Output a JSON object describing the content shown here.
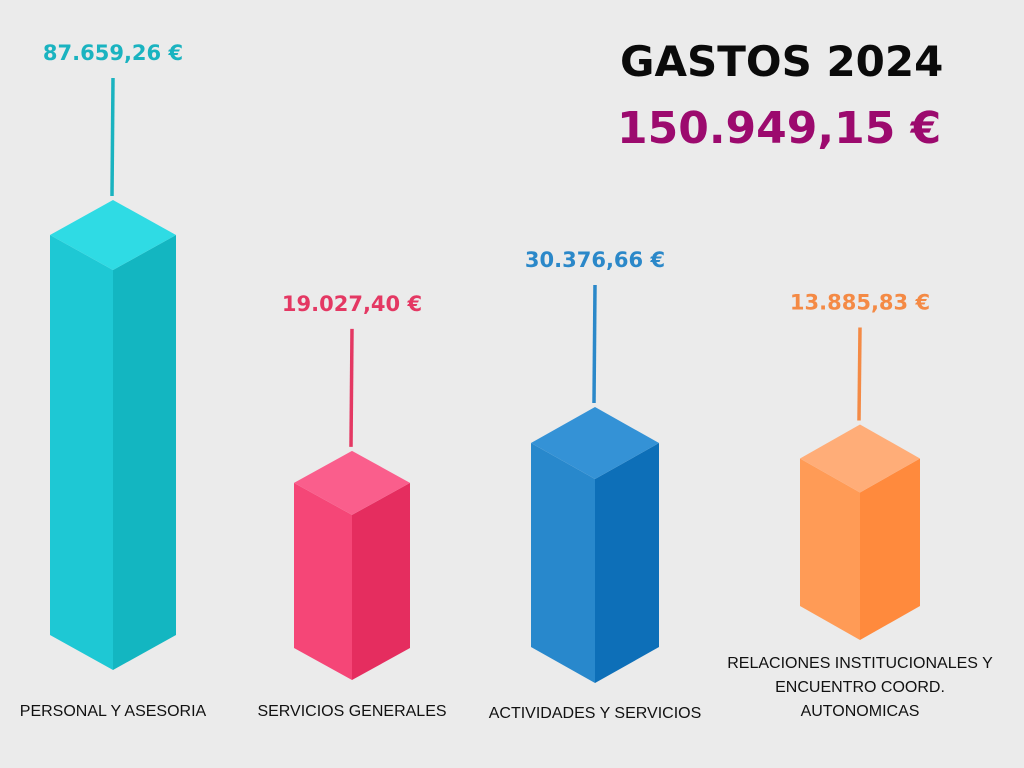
{
  "chart_data": {
    "type": "bar",
    "title": "GASTOS 2024",
    "total": "150.949,15 €",
    "total_color": "#9c0a6e",
    "categories": [
      [
        "PERSONAL Y ASESORIA"
      ],
      [
        "SERVICIOS GENERALES"
      ],
      [
        "ACTIVIDADES Y SERVICIOS"
      ],
      [
        "RELACIONES INSTITUCIONALES Y",
        "ENCUENTRO COORD.",
        "AUTONOMICAS"
      ]
    ],
    "values": [
      87659.26,
      19027.4,
      30376.66,
      13885.83
    ],
    "value_labels": [
      "87.659,26 €",
      "19.027,40 €",
      "30.376,66 €",
      "13.885,83 €"
    ],
    "colors": [
      {
        "top": "#2fdbe4",
        "left": "#1ec8d4",
        "right": "#13b6c1",
        "label": "#1ab3c0"
      },
      {
        "top": "#fa5e8c",
        "left": "#f54677",
        "right": "#e52d5f",
        "label": "#e43863"
      },
      {
        "top": "#3492d6",
        "left": "#2888cc",
        "right": "#0d6fb8",
        "label": "#2b88c9"
      },
      {
        "top": "#ffad78",
        "left": "#ff9b56",
        "right": "#ff8a3d",
        "label": "#f48a45"
      }
    ]
  }
}
